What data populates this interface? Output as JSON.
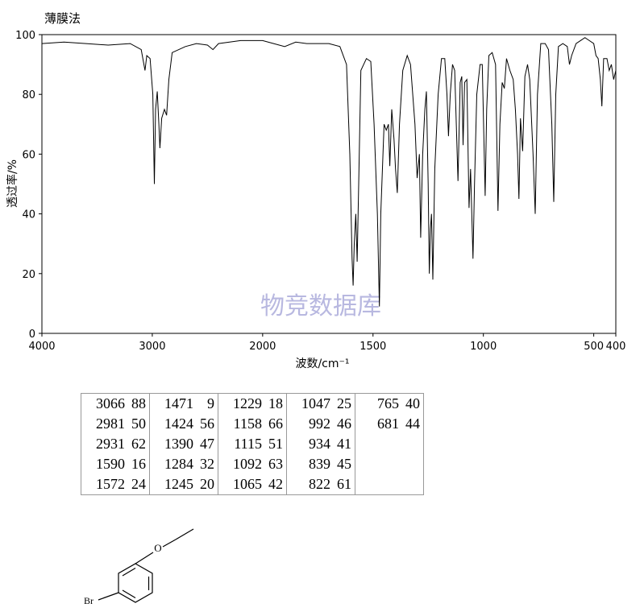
{
  "chart_data": {
    "type": "line",
    "title": "薄膜法",
    "xlabel": "波数/cm⁻¹",
    "ylabel": "透过率/%",
    "watermark": "物竞数据库",
    "xlim": [
      4000,
      400
    ],
    "x_scale_change": {
      "at": 2000,
      "factor": 2
    },
    "xticks": [
      4000,
      3000,
      2000,
      1500,
      1000,
      500,
      400
    ],
    "ylim": [
      0,
      100
    ],
    "yticks": [
      0,
      20,
      40,
      60,
      80,
      100
    ],
    "color": "#000000",
    "x": [
      4000,
      3800,
      3600,
      3400,
      3200,
      3100,
      3066,
      3050,
      3020,
      2995,
      2981,
      2970,
      2955,
      2940,
      2931,
      2915,
      2890,
      2870,
      2850,
      2820,
      2700,
      2600,
      2500,
      2450,
      2400,
      2200,
      2000,
      1950,
      1900,
      1850,
      1800,
      1700,
      1650,
      1620,
      1605,
      1595,
      1590,
      1585,
      1578,
      1572,
      1565,
      1555,
      1530,
      1510,
      1495,
      1480,
      1471,
      1465,
      1450,
      1440,
      1430,
      1424,
      1415,
      1405,
      1398,
      1390,
      1380,
      1365,
      1345,
      1330,
      1310,
      1300,
      1290,
      1284,
      1275,
      1265,
      1258,
      1250,
      1245,
      1240,
      1235,
      1229,
      1220,
      1205,
      1190,
      1175,
      1165,
      1158,
      1150,
      1140,
      1130,
      1115,
      1105,
      1098,
      1092,
      1085,
      1075,
      1065,
      1058,
      1047,
      1040,
      1030,
      1015,
      1005,
      992,
      985,
      975,
      960,
      945,
      934,
      925,
      915,
      905,
      895,
      880,
      865,
      855,
      845,
      839,
      832,
      822,
      812,
      800,
      790,
      775,
      765,
      755,
      740,
      720,
      705,
      690,
      681,
      672,
      660,
      640,
      620,
      610,
      600,
      580,
      560,
      540,
      520,
      500,
      490,
      480,
      470,
      463,
      455,
      440,
      430,
      420,
      410,
      400
    ],
    "values": [
      97,
      97.5,
      97,
      96.5,
      97,
      95,
      88,
      93,
      92,
      80,
      50,
      75,
      81,
      70,
      62,
      72,
      75,
      73,
      85,
      94,
      96,
      97,
      96.5,
      95,
      97,
      98,
      98,
      97,
      96,
      97.5,
      97,
      97,
      96,
      90,
      60,
      25,
      16,
      30,
      40,
      24,
      50,
      88,
      92,
      91,
      70,
      40,
      9,
      40,
      70,
      68,
      70,
      56,
      75,
      65,
      55,
      47,
      70,
      88,
      93,
      90,
      70,
      52,
      60,
      32,
      60,
      75,
      81,
      50,
      20,
      35,
      40,
      18,
      55,
      80,
      92,
      92,
      80,
      66,
      80,
      90,
      88,
      51,
      84,
      86,
      63,
      84,
      85,
      42,
      55,
      25,
      50,
      80,
      90,
      90,
      46,
      75,
      93,
      94,
      90,
      41,
      70,
      84,
      82,
      92,
      88,
      85,
      75,
      60,
      45,
      72,
      61,
      86,
      90,
      85,
      60,
      40,
      80,
      97,
      97,
      95,
      70,
      44,
      80,
      96,
      97,
      96,
      90,
      93,
      97,
      98,
      99,
      98,
      97,
      93,
      92,
      85,
      76,
      92,
      92,
      88,
      90,
      85,
      88
    ]
  },
  "peak_table": {
    "columns": [
      [
        [
          3066,
          88
        ],
        [
          2981,
          50
        ],
        [
          2931,
          62
        ],
        [
          1590,
          16
        ],
        [
          1572,
          24
        ]
      ],
      [
        [
          1471,
          9
        ],
        [
          1424,
          56
        ],
        [
          1390,
          47
        ],
        [
          1284,
          32
        ],
        [
          1245,
          20
        ]
      ],
      [
        [
          1229,
          18
        ],
        [
          1158,
          66
        ],
        [
          1115,
          51
        ],
        [
          1092,
          63
        ],
        [
          1065,
          42
        ]
      ],
      [
        [
          1047,
          25
        ],
        [
          992,
          46
        ],
        [
          934,
          41
        ],
        [
          839,
          45
        ],
        [
          822,
          61
        ]
      ],
      [
        [
          765,
          40
        ],
        [
          681,
          44
        ]
      ]
    ]
  },
  "structure": {
    "atoms": [
      "Br",
      "O"
    ]
  }
}
